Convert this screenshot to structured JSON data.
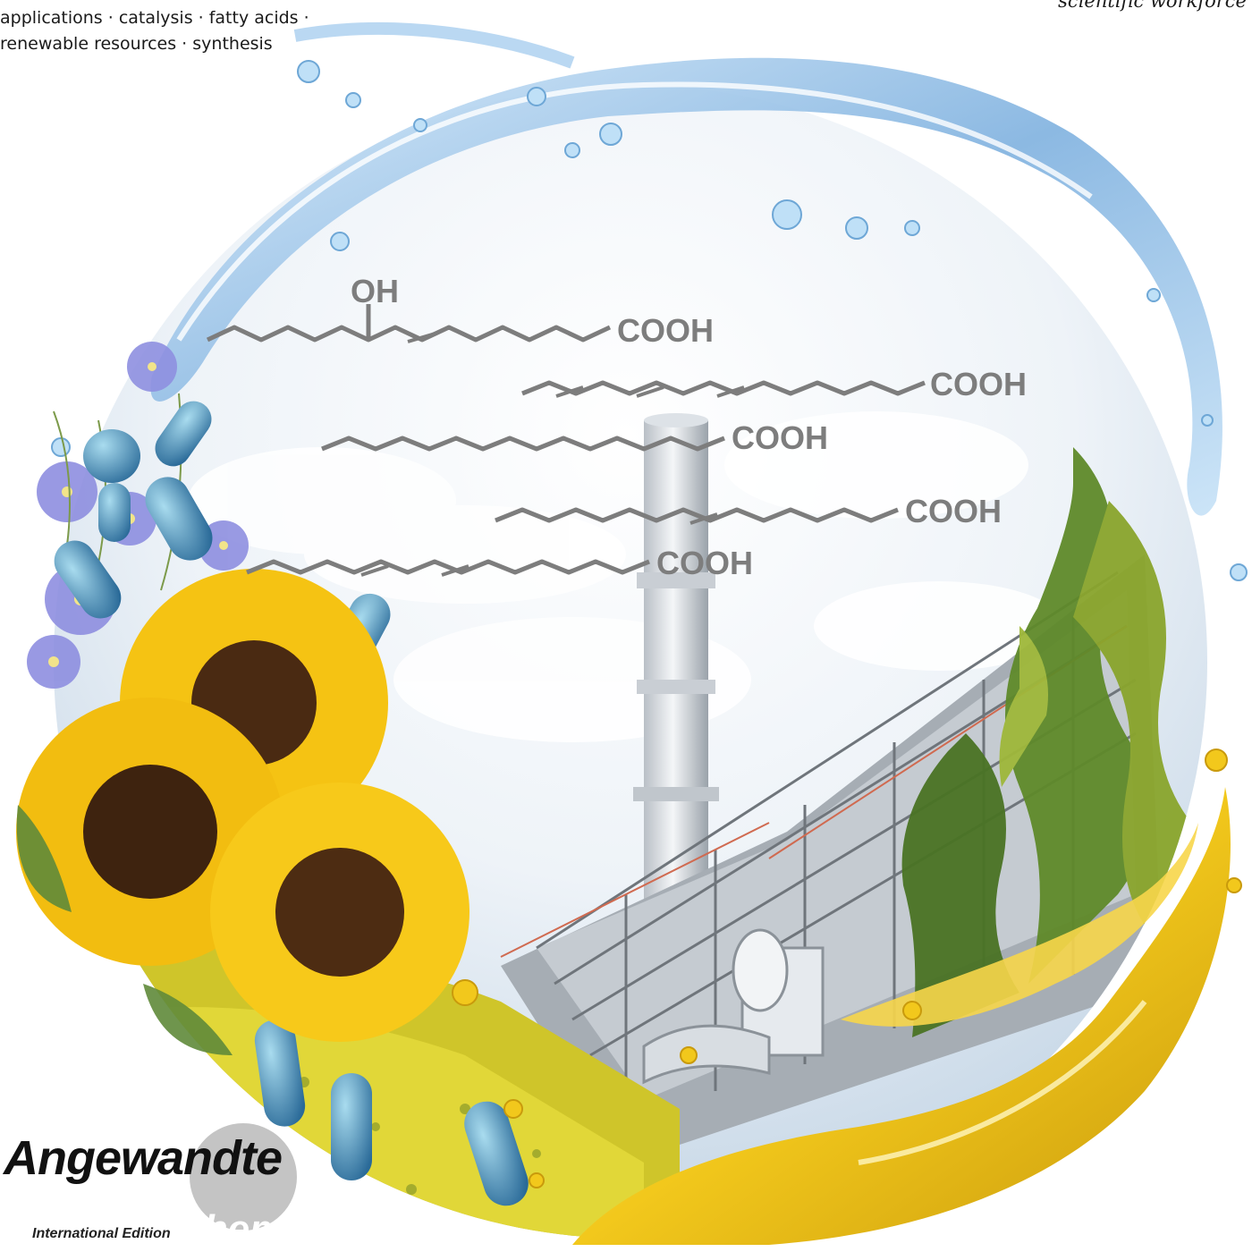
{
  "keywords": {
    "line1": "applications · catalysis · fatty acids ·",
    "line2": "renewable resources · synthesis"
  },
  "cut_text": {
    "line1": "scientific workforce"
  },
  "structures": {
    "oh_label": "OH",
    "cooh_labels": [
      "COOH",
      "COOH",
      "COOH",
      "COOH",
      "COOH"
    ]
  },
  "logo": {
    "name": "Angewandte",
    "edition": "International Edition",
    "sub": "Chemie"
  },
  "colors": {
    "water": "#8fbfe6",
    "oil": "#f2c81c",
    "sunflower": "#f5c313",
    "sunflower_center": "#4a2a12",
    "rapeseed": "#d8cc2a",
    "algae": "#5f8a2a",
    "bacteria": "#5aa6c8",
    "flax": "#8e8fe0",
    "structure_gray": "#7d7d7d"
  }
}
